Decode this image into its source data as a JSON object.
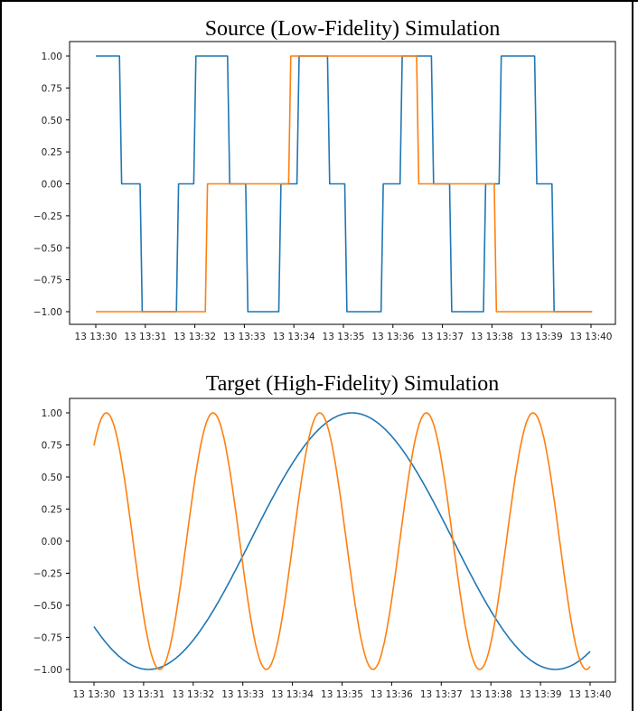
{
  "chart_data": [
    {
      "type": "line",
      "title": "Source (Low-Fidelity) Simulation",
      "xlabel": "",
      "ylabel": "",
      "x_tick_labels": [
        "13 13:30",
        "13 13:31",
        "13 13:32",
        "13 13:33",
        "13 13:34",
        "13 13:35",
        "13 13:36",
        "13 13:37",
        "13 13:38",
        "13 13:39",
        "13 13:40"
      ],
      "y_tick_labels": [
        "1.00",
        "0.75",
        "0.50",
        "0.25",
        "0.00",
        "−0.25",
        "−0.50",
        "−0.75",
        "−1.00"
      ],
      "y_ticks": [
        1.0,
        0.75,
        0.5,
        0.25,
        0.0,
        -0.25,
        -0.5,
        -0.75,
        -1.0
      ],
      "xlim": [
        "13:30",
        "13:40"
      ],
      "ylim": [
        -1.1,
        1.1
      ],
      "grid": false,
      "series": [
        {
          "color": "#1f77b4",
          "step": true,
          "x": [
            "13:30:00",
            "13:30:30",
            "13:30:55",
            "13:31:39",
            "13:32:00",
            "13:32:41",
            "13:33:03",
            "13:33:43",
            "13:34:05",
            "13:34:42",
            "13:35:03",
            "13:35:47",
            "13:36:10",
            "13:36:48",
            "13:37:10",
            "13:37:51",
            "13:38:10",
            "13:38:53",
            "13:39:14",
            "13:40:00"
          ],
          "values": [
            1,
            0,
            -1,
            0,
            1,
            0,
            -1,
            0,
            1,
            0,
            -1,
            0,
            1,
            0,
            -1,
            0,
            1,
            0,
            -1,
            -1
          ]
        },
        {
          "color": "#ff7f0e",
          "step": true,
          "x": [
            "13:30:00",
            "13:32:14",
            "13:33:55",
            "13:36:30",
            "13:38:04",
            "13:40:00"
          ],
          "values": [
            -1,
            0,
            1,
            0,
            -1,
            -1
          ]
        }
      ]
    },
    {
      "type": "line",
      "title": "Target (High-Fidelity) Simulation",
      "xlabel": "",
      "ylabel": "",
      "x_tick_labels": [
        "13 13:30",
        "13 13:31",
        "13 13:32",
        "13 13:33",
        "13 13:34",
        "13 13:35",
        "13 13:36",
        "13 13:37",
        "13 13:38",
        "13 13:39",
        "13 13:40"
      ],
      "y_tick_labels": [
        "1.00",
        "0.75",
        "0.50",
        "0.25",
        "0.00",
        "−0.25",
        "−0.50",
        "−0.75",
        "−1.00"
      ],
      "y_ticks": [
        1.0,
        0.75,
        0.5,
        0.25,
        0.0,
        -0.25,
        -0.5,
        -0.75,
        -1.0
      ],
      "xlim": [
        "13:30",
        "13:40"
      ],
      "ylim": [
        -1.1,
        1.1
      ],
      "grid": false,
      "series": [
        {
          "color": "#1f77b4",
          "function": "sine",
          "amplitude": 1,
          "period_minutes": 8.2,
          "peak_time": "13:35:12",
          "x_start": "13:30:00",
          "x_end": "13:40:00"
        },
        {
          "color": "#ff7f0e",
          "function": "sine",
          "amplitude": 1,
          "period_minutes": 2.15,
          "peak_time": "13:30:15",
          "x_start": "13:30:00",
          "x_end": "13:40:00"
        }
      ]
    }
  ]
}
